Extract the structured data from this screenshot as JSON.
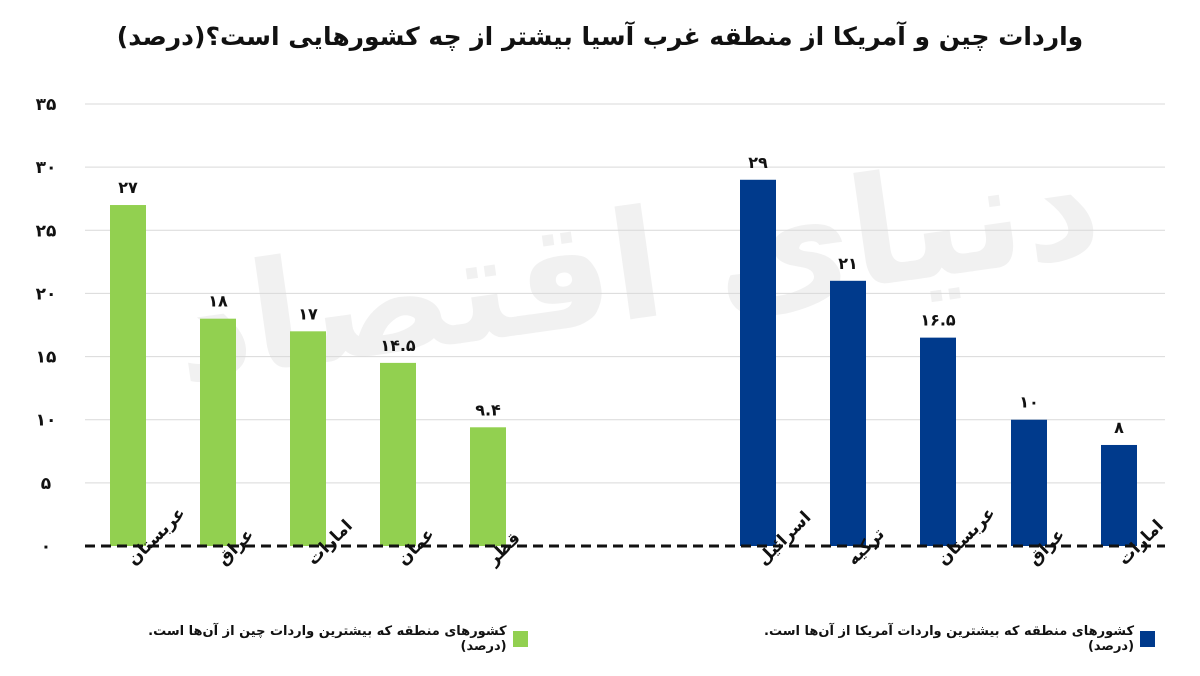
{
  "title": "واردات چین و آمریکا از منطقه غرب آسیا بیشتر از چه کشورهایی است؟(درصد)",
  "watermark": "دنیای اقتصاد",
  "chart_data": {
    "type": "bar",
    "ylim": [
      0,
      35
    ],
    "yticks": [
      "۰",
      "۵",
      "۱۰",
      "۱۵",
      "۲۰",
      "۲۵",
      "۳۰",
      "۳۵"
    ],
    "grid": true,
    "series": [
      {
        "name": "کشورهای منطقه که بیشترین واردات چین از آن‌ها است.(درصد)",
        "color": "#92d050",
        "categories": [
          "عربستان",
          "عراق",
          "امارات",
          "عمان",
          "قطر"
        ],
        "values": [
          27,
          18,
          17,
          14.5,
          9.4
        ],
        "labels": [
          "۲۷",
          "۱۸",
          "۱۷",
          "۱۴.۵",
          "۹.۴"
        ]
      },
      {
        "name": "کشورهای منطقه که بیشترین واردات آمریکا از آن‌ها است.(درصد)",
        "color": "#003a8c",
        "categories": [
          "اسرائیل",
          "ترکیه",
          "عربستان",
          "عراق",
          "امارات"
        ],
        "values": [
          29,
          21,
          16.5,
          10,
          8
        ],
        "labels": [
          "۲۹",
          "۲۱",
          "۱۶.۵",
          "۱۰",
          "۸"
        ]
      }
    ]
  }
}
